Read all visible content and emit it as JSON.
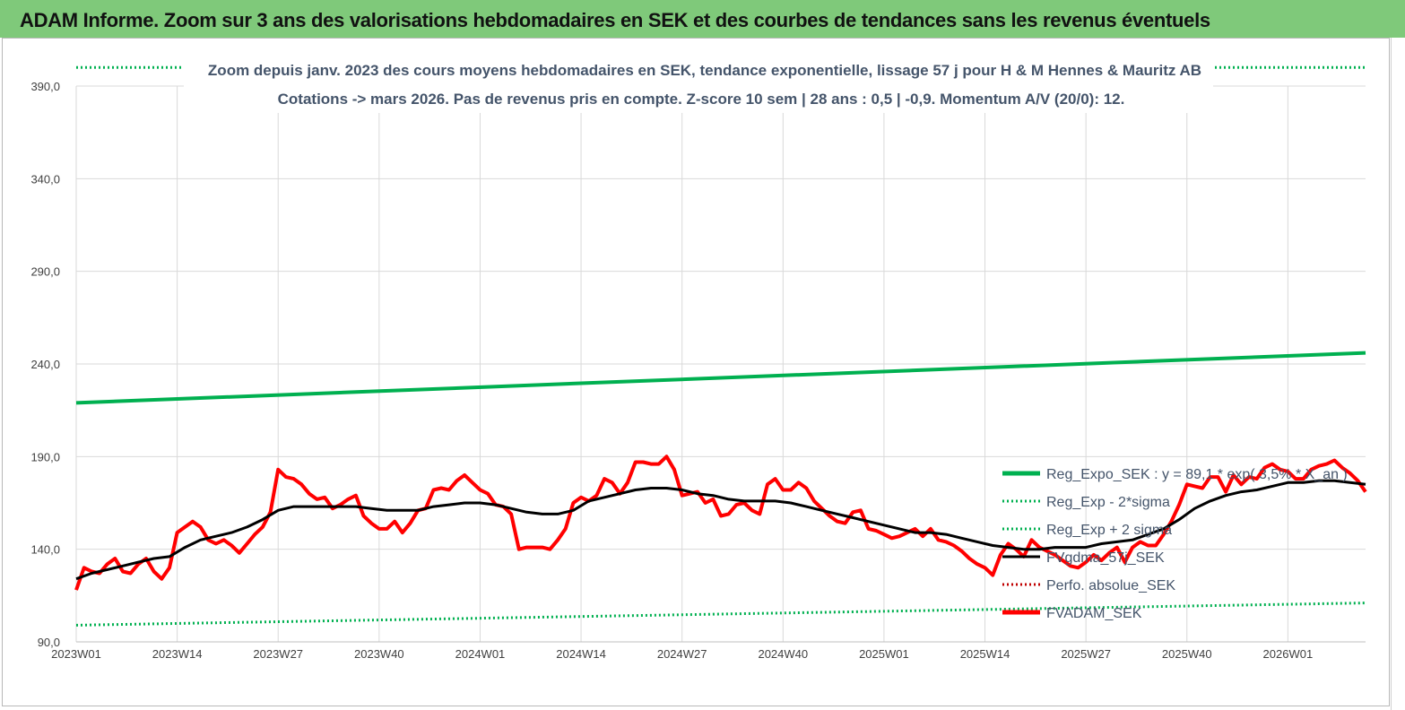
{
  "banner": {
    "title": "ADAM Informe. Zoom sur 3 ans des valorisations hebdomadaires en SEK et des courbes de tendances sans les revenus éventuels"
  },
  "colors": {
    "banner_bg": "#7fc97a",
    "reg_expo": "#00b050",
    "sigma": "#00b050",
    "fvgdma": "#000000",
    "perfo": "#c00000",
    "fvadam": "#ff0000",
    "grid": "#d9d9d9"
  },
  "chart_data": {
    "type": "line",
    "title_lines": [
      "Zoom depuis janv. 2023 des cours moyens hebdomadaires en SEK, tendance exponentielle, lissage 57 j pour H & M Hennes & Mauritz AB",
      "Cotations -> mars 2026. Pas de revenus pris en compte. Z-score 10 sem | 28 ans : 0,5 | -0,9. Momentum A/V (20/0): 12."
    ],
    "ylim": [
      90,
      390
    ],
    "y_ticks": [
      "90,0",
      "140,0",
      "190,0",
      "240,0",
      "290,0",
      "340,0",
      "390,0"
    ],
    "x_range_weeks": [
      0,
      166
    ],
    "x_ticks": [
      {
        "label": "2023W01",
        "week": 0
      },
      {
        "label": "2023W14",
        "week": 13
      },
      {
        "label": "2023W27",
        "week": 26
      },
      {
        "label": "2023W40",
        "week": 39
      },
      {
        "label": "2024W01",
        "week": 52
      },
      {
        "label": "2024W14",
        "week": 65
      },
      {
        "label": "2024W27",
        "week": 78
      },
      {
        "label": "2024W40",
        "week": 91
      },
      {
        "label": "2025W01",
        "week": 104
      },
      {
        "label": "2025W14",
        "week": 117
      },
      {
        "label": "2025W27",
        "week": 130
      },
      {
        "label": "2025W40",
        "week": 143
      },
      {
        "label": "2026W01",
        "week": 156
      }
    ],
    "grid": true,
    "legend_position": "bottom-right, inside plot",
    "series": [
      {
        "name": "Reg_Expo_SEK : y = 89,1 * exp( 3,5% * X_an )",
        "style": "thick-solid",
        "color": "#00b050",
        "points": [
          [
            0,
            219
          ],
          [
            166,
            246
          ]
        ]
      },
      {
        "name": "Reg_Exp - 2*sigma",
        "style": "dotted",
        "color": "#00b050",
        "points": [
          [
            0,
            99
          ],
          [
            166,
            111
          ]
        ]
      },
      {
        "name": "Reg_Exp + 2 sigma",
        "style": "dotted",
        "color": "#00b050",
        "points": [
          [
            0,
            400
          ],
          [
            166,
            400
          ]
        ]
      },
      {
        "name": "FVgdma_57j_SEK",
        "style": "solid",
        "color": "#000000",
        "points": [
          [
            0,
            124
          ],
          [
            2,
            127
          ],
          [
            4,
            129
          ],
          [
            6,
            131
          ],
          [
            8,
            133
          ],
          [
            10,
            135
          ],
          [
            12,
            136
          ],
          [
            14,
            141
          ],
          [
            16,
            145
          ],
          [
            18,
            147
          ],
          [
            20,
            149
          ],
          [
            22,
            152
          ],
          [
            24,
            156
          ],
          [
            26,
            161
          ],
          [
            28,
            163
          ],
          [
            30,
            163
          ],
          [
            32,
            163
          ],
          [
            34,
            163
          ],
          [
            36,
            163
          ],
          [
            38,
            162
          ],
          [
            40,
            161
          ],
          [
            42,
            161
          ],
          [
            44,
            161
          ],
          [
            46,
            163
          ],
          [
            48,
            164
          ],
          [
            50,
            165
          ],
          [
            52,
            165
          ],
          [
            54,
            164
          ],
          [
            56,
            162
          ],
          [
            58,
            160
          ],
          [
            60,
            159
          ],
          [
            62,
            159
          ],
          [
            64,
            161
          ],
          [
            66,
            166
          ],
          [
            68,
            168
          ],
          [
            70,
            170
          ],
          [
            72,
            172
          ],
          [
            74,
            173
          ],
          [
            76,
            173
          ],
          [
            78,
            172
          ],
          [
            80,
            170
          ],
          [
            82,
            169
          ],
          [
            84,
            167
          ],
          [
            86,
            166
          ],
          [
            88,
            166
          ],
          [
            90,
            166
          ],
          [
            92,
            165
          ],
          [
            94,
            163
          ],
          [
            96,
            161
          ],
          [
            98,
            159
          ],
          [
            100,
            157
          ],
          [
            102,
            155
          ],
          [
            104,
            153
          ],
          [
            106,
            151
          ],
          [
            108,
            149
          ],
          [
            110,
            149
          ],
          [
            112,
            148
          ],
          [
            114,
            146
          ],
          [
            116,
            144
          ],
          [
            118,
            142
          ],
          [
            120,
            141
          ],
          [
            122,
            140
          ],
          [
            124,
            140
          ],
          [
            126,
            141
          ],
          [
            128,
            141
          ],
          [
            130,
            141
          ],
          [
            132,
            143
          ],
          [
            134,
            144
          ],
          [
            136,
            145
          ],
          [
            138,
            148
          ],
          [
            140,
            151
          ],
          [
            142,
            156
          ],
          [
            144,
            162
          ],
          [
            146,
            166
          ],
          [
            148,
            169
          ],
          [
            150,
            171
          ],
          [
            152,
            172
          ],
          [
            154,
            174
          ],
          [
            156,
            176
          ],
          [
            158,
            176
          ],
          [
            160,
            177
          ],
          [
            162,
            177
          ],
          [
            164,
            176
          ],
          [
            166,
            175
          ]
        ]
      },
      {
        "name": "Perfo. absolue_SEK",
        "style": "dotted",
        "color": "#c00000",
        "points": []
      },
      {
        "name": "FVADAM_SEK",
        "style": "thick-solid",
        "color": "#ff0000",
        "points": [
          [
            0,
            118
          ],
          [
            1,
            130
          ],
          [
            2,
            128
          ],
          [
            3,
            127
          ],
          [
            4,
            132
          ],
          [
            5,
            135
          ],
          [
            6,
            128
          ],
          [
            7,
            127
          ],
          [
            8,
            132
          ],
          [
            9,
            135
          ],
          [
            10,
            128
          ],
          [
            11,
            124
          ],
          [
            12,
            130
          ],
          [
            13,
            149
          ],
          [
            14,
            152
          ],
          [
            15,
            155
          ],
          [
            16,
            152
          ],
          [
            17,
            145
          ],
          [
            18,
            143
          ],
          [
            19,
            145
          ],
          [
            20,
            142
          ],
          [
            21,
            138
          ],
          [
            22,
            143
          ],
          [
            23,
            148
          ],
          [
            24,
            152
          ],
          [
            25,
            160
          ],
          [
            26,
            183
          ],
          [
            27,
            179
          ],
          [
            28,
            178
          ],
          [
            29,
            175
          ],
          [
            30,
            170
          ],
          [
            31,
            167
          ],
          [
            32,
            168
          ],
          [
            33,
            162
          ],
          [
            34,
            164
          ],
          [
            35,
            167
          ],
          [
            36,
            169
          ],
          [
            37,
            158
          ],
          [
            38,
            154
          ],
          [
            39,
            151
          ],
          [
            40,
            151
          ],
          [
            41,
            155
          ],
          [
            42,
            149
          ],
          [
            43,
            154
          ],
          [
            44,
            161
          ],
          [
            45,
            162
          ],
          [
            46,
            172
          ],
          [
            47,
            173
          ],
          [
            48,
            172
          ],
          [
            49,
            177
          ],
          [
            50,
            180
          ],
          [
            51,
            176
          ],
          [
            52,
            172
          ],
          [
            53,
            170
          ],
          [
            54,
            164
          ],
          [
            55,
            163
          ],
          [
            56,
            159
          ],
          [
            57,
            140
          ],
          [
            58,
            141
          ],
          [
            59,
            141
          ],
          [
            60,
            141
          ],
          [
            61,
            140
          ],
          [
            62,
            145
          ],
          [
            63,
            151
          ],
          [
            64,
            165
          ],
          [
            65,
            168
          ],
          [
            66,
            166
          ],
          [
            67,
            169
          ],
          [
            68,
            178
          ],
          [
            69,
            176
          ],
          [
            70,
            170
          ],
          [
            71,
            176
          ],
          [
            72,
            187
          ],
          [
            73,
            187
          ],
          [
            74,
            186
          ],
          [
            75,
            186
          ],
          [
            76,
            190
          ],
          [
            77,
            183
          ],
          [
            78,
            169
          ],
          [
            79,
            170
          ],
          [
            80,
            171
          ],
          [
            81,
            165
          ],
          [
            82,
            167
          ],
          [
            83,
            158
          ],
          [
            84,
            159
          ],
          [
            85,
            164
          ],
          [
            86,
            165
          ],
          [
            87,
            161
          ],
          [
            88,
            159
          ],
          [
            89,
            175
          ],
          [
            90,
            178
          ],
          [
            91,
            172
          ],
          [
            92,
            172
          ],
          [
            93,
            176
          ],
          [
            94,
            173
          ],
          [
            95,
            166
          ],
          [
            96,
            162
          ],
          [
            97,
            158
          ],
          [
            98,
            155
          ],
          [
            99,
            154
          ],
          [
            100,
            160
          ],
          [
            101,
            161
          ],
          [
            102,
            151
          ],
          [
            103,
            150
          ],
          [
            104,
            148
          ],
          [
            105,
            146
          ],
          [
            106,
            147
          ],
          [
            107,
            149
          ],
          [
            108,
            151
          ],
          [
            109,
            147
          ],
          [
            110,
            151
          ],
          [
            111,
            145
          ],
          [
            112,
            144
          ],
          [
            113,
            142
          ],
          [
            114,
            139
          ],
          [
            115,
            135
          ],
          [
            116,
            132
          ],
          [
            117,
            130
          ],
          [
            118,
            126
          ],
          [
            119,
            137
          ],
          [
            120,
            143
          ],
          [
            121,
            140
          ],
          [
            122,
            136
          ],
          [
            123,
            145
          ],
          [
            124,
            141
          ],
          [
            125,
            139
          ],
          [
            126,
            137
          ],
          [
            127,
            134
          ],
          [
            128,
            131
          ],
          [
            129,
            130
          ],
          [
            130,
            133
          ],
          [
            131,
            137
          ],
          [
            132,
            134
          ],
          [
            133,
            138
          ],
          [
            134,
            141
          ],
          [
            135,
            133
          ],
          [
            136,
            141
          ],
          [
            137,
            144
          ],
          [
            138,
            142
          ],
          [
            139,
            142
          ],
          [
            140,
            148
          ],
          [
            141,
            155
          ],
          [
            142,
            164
          ],
          [
            143,
            175
          ],
          [
            144,
            174
          ],
          [
            145,
            173
          ],
          [
            146,
            179
          ],
          [
            147,
            179
          ],
          [
            148,
            171
          ],
          [
            149,
            180
          ],
          [
            150,
            175
          ],
          [
            151,
            179
          ],
          [
            152,
            178
          ],
          [
            153,
            184
          ],
          [
            154,
            186
          ],
          [
            155,
            183
          ],
          [
            156,
            182
          ],
          [
            157,
            178
          ],
          [
            158,
            178
          ],
          [
            159,
            183
          ],
          [
            160,
            185
          ],
          [
            161,
            186
          ],
          [
            162,
            188
          ],
          [
            163,
            184
          ],
          [
            164,
            181
          ],
          [
            165,
            177
          ],
          [
            166,
            171
          ]
        ]
      }
    ]
  }
}
